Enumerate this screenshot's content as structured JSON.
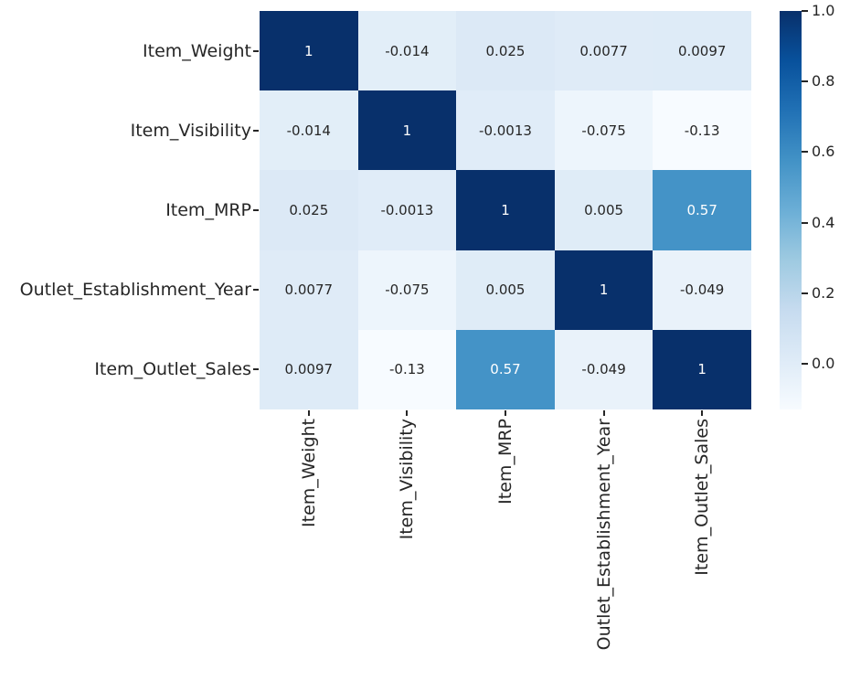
{
  "chart_data": {
    "type": "heatmap",
    "title": "",
    "variables": [
      "Item_Weight",
      "Item_Visibility",
      "Item_MRP",
      "Outlet_Establishment_Year",
      "Item_Outlet_Sales"
    ],
    "matrix": [
      [
        1,
        -0.014,
        0.025,
        0.0077,
        0.0097
      ],
      [
        -0.014,
        1,
        -0.0013,
        -0.075,
        -0.13
      ],
      [
        0.025,
        -0.0013,
        1,
        0.005,
        0.57
      ],
      [
        0.0077,
        -0.075,
        0.005,
        1,
        -0.049
      ],
      [
        0.0097,
        -0.13,
        0.57,
        -0.049,
        1
      ]
    ],
    "annotations": [
      [
        "1",
        "-0.014",
        "0.025",
        "0.0077",
        "0.0097"
      ],
      [
        "-0.014",
        "1",
        "-0.0013",
        "-0.075",
        "-0.13"
      ],
      [
        "0.025",
        "-0.0013",
        "1",
        "0.005",
        "0.57"
      ],
      [
        "0.0077",
        "-0.075",
        "0.005",
        "1",
        "-0.049"
      ],
      [
        "0.0097",
        "-0.13",
        "0.57",
        "-0.049",
        "1"
      ]
    ],
    "vmin": -0.13,
    "vmax": 1.0,
    "colormap": {
      "name": "Blues",
      "stops": [
        [
          0.0,
          247,
          251,
          255
        ],
        [
          0.125,
          222,
          235,
          247
        ],
        [
          0.25,
          198,
          219,
          239
        ],
        [
          0.375,
          158,
          202,
          225
        ],
        [
          0.5,
          107,
          174,
          214
        ],
        [
          0.625,
          66,
          146,
          198
        ],
        [
          0.75,
          33,
          113,
          181
        ],
        [
          0.875,
          8,
          81,
          156
        ],
        [
          1.0,
          8,
          48,
          107
        ]
      ]
    },
    "colorbar": {
      "position": "right",
      "ticks": [
        {
          "value": 1.0,
          "label": "1.0"
        },
        {
          "value": 0.8,
          "label": "0.8"
        },
        {
          "value": 0.6,
          "label": "0.6"
        },
        {
          "value": 0.4,
          "label": "0.4"
        },
        {
          "value": 0.2,
          "label": "0.2"
        },
        {
          "value": 0.0,
          "label": "0.0"
        }
      ]
    },
    "colors": {
      "background": "#ffffff",
      "cell_text_dark": "#262626",
      "cell_text_light": "#ffffff",
      "axis_text": "#262626",
      "tick_mark": "#262626",
      "cmap_min": "#f7fbff",
      "cmap_max": "#08306b"
    },
    "luminance_white_threshold": 0.408,
    "grid": false,
    "xlabel": "",
    "ylabel": ""
  }
}
